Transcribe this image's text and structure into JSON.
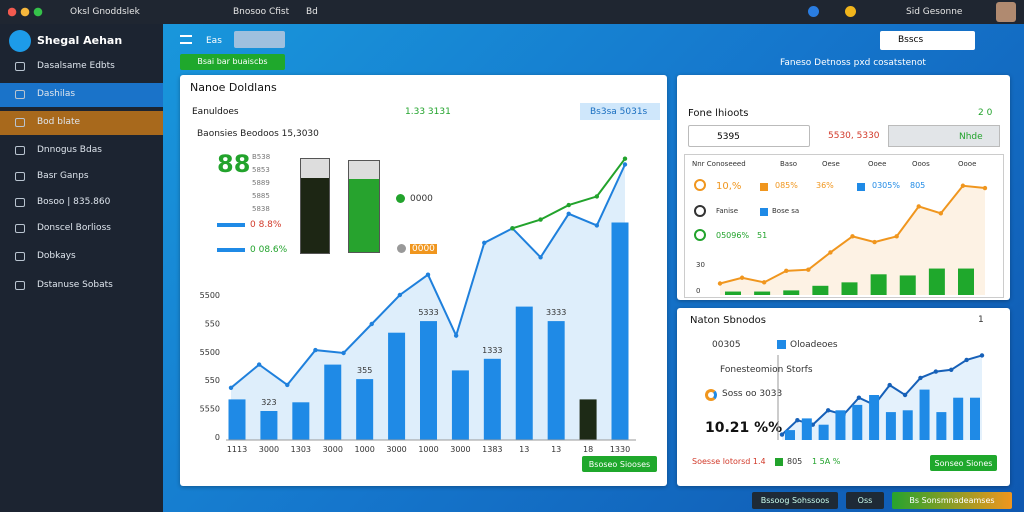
{
  "top_bar": {
    "tab1": "Oksl Gnoddslek",
    "tab2": "Bnosoo Cfist",
    "tab3": "Bd",
    "account": "Sid Gesonne"
  },
  "sidebar": {
    "brand": "Shegal Aehan",
    "items": [
      "Dasalsame Edbts",
      "Dashilas",
      "Bod blate",
      "Dnnogus Bdas",
      "Basr Ganps",
      "Bosoo | 835.860",
      "Donscel Borlioss",
      "Dobkays",
      "Dstanuse Sobats"
    ]
  },
  "toolbar": {
    "tab": "Eas",
    "search": "Bsscs",
    "button": "Bsai bar buaiscbs",
    "banner": "Faneso Detnoss pxd cosatstenot"
  },
  "main": {
    "title": "Nanoe Doldlans",
    "subtitle": "Eanuldoes",
    "stat": "1.33 3131",
    "badge": "Bs3sa 5031s",
    "caption": "Baonsies Beodoos  15,3030",
    "big": "88",
    "mini_list": [
      "B538",
      "5853",
      "5889",
      "5885",
      "5838"
    ],
    "legend": [
      "0000",
      "0000"
    ],
    "rows": [
      "0 8.8%",
      "0 08.6%"
    ],
    "button": "Bsoseo Siooses",
    "chart": {
      "y_labels": [
        "5500",
        "550",
        "5500",
        "550",
        "5550",
        "0"
      ],
      "x_labels": [
        "1113",
        "3000",
        "1303",
        "3000",
        "1000",
        "3000",
        "1000",
        "3000",
        "1383",
        "13",
        "13",
        "18",
        "1330"
      ],
      "bar_labels": [
        null,
        "323",
        null,
        null,
        "355",
        null,
        "5333",
        null,
        "1333",
        null,
        "3333",
        null,
        null
      ],
      "bars": [
        14,
        10,
        13,
        26,
        21,
        37,
        41,
        24,
        28,
        46,
        41,
        14,
        75
      ],
      "bar_colors": [
        "#1f8ae6",
        "#1f8ae6",
        "#1f8ae6",
        "#1f8ae6",
        "#1f8ae6",
        "#1f8ae6",
        "#1f8ae6",
        "#1f8ae6",
        "#1f8ae6",
        "#1f8ae6",
        "#1f8ae6",
        "#1d2a16",
        "#1f8ae6"
      ],
      "line": [
        18,
        26,
        19,
        31,
        30,
        40,
        50,
        57,
        36,
        68,
        73,
        63,
        78,
        74,
        95
      ],
      "line_color": "#1f80dc",
      "line2": [
        null,
        null,
        null,
        null,
        null,
        null,
        null,
        null,
        null,
        null,
        73,
        76,
        81,
        84,
        97
      ],
      "line2_color": "#22a32c",
      "ylim": [
        0,
        100
      ]
    }
  },
  "panel1": {
    "title": "Fone lhioots",
    "menu": "2 0",
    "field": "5395",
    "red": "5530, 5330",
    "box": "Nhde",
    "headers": [
      "Nnr Conoseeed",
      "Baso",
      "Oese",
      "Ooee",
      "Ooos",
      "Oooe"
    ],
    "legend1": [
      "10,%",
      "085%",
      "36%",
      "0305%",
      "805"
    ],
    "legend2": [
      "Fanise",
      "Bose sa"
    ],
    "legend3": [
      "05096%",
      "51"
    ],
    "y_labels": [
      "30",
      "0"
    ],
    "line": [
      10,
      15,
      11,
      21,
      22,
      37,
      51,
      46,
      51,
      77,
      71,
      95,
      93
    ],
    "line_color": "#f0961e",
    "bars": [
      3,
      3,
      4,
      8,
      11,
      18,
      17,
      23,
      23
    ],
    "bar_color": "#1fa82c",
    "ylim": [
      0,
      100
    ]
  },
  "panel2": {
    "title": "Naton Sbnodos",
    "menu": "1",
    "row": [
      "00305",
      "Oloadeoes"
    ],
    "label1": "Fonesteomion Storfs",
    "label2": "Soss oo 3033",
    "big": "10.21 %%",
    "footer": [
      "Soesse lotorsd 1.4",
      "805",
      "1 5A %"
    ],
    "button": "Sonseo Siones",
    "bars": [
      11,
      24,
      17,
      33,
      39,
      50,
      31,
      33,
      56,
      31,
      47,
      47
    ],
    "bar_color": "#1f8ae6",
    "line": [
      6,
      22,
      17,
      33,
      28,
      47,
      39,
      61,
      50,
      69,
      76,
      78,
      89,
      94
    ],
    "line_color": "#1660b8",
    "ylim": [
      0,
      100
    ]
  },
  "footer": {
    "b1": "Bssoog Sohssoos",
    "b2": "Oss",
    "b3": "Bs Sonsmnadeamses"
  }
}
